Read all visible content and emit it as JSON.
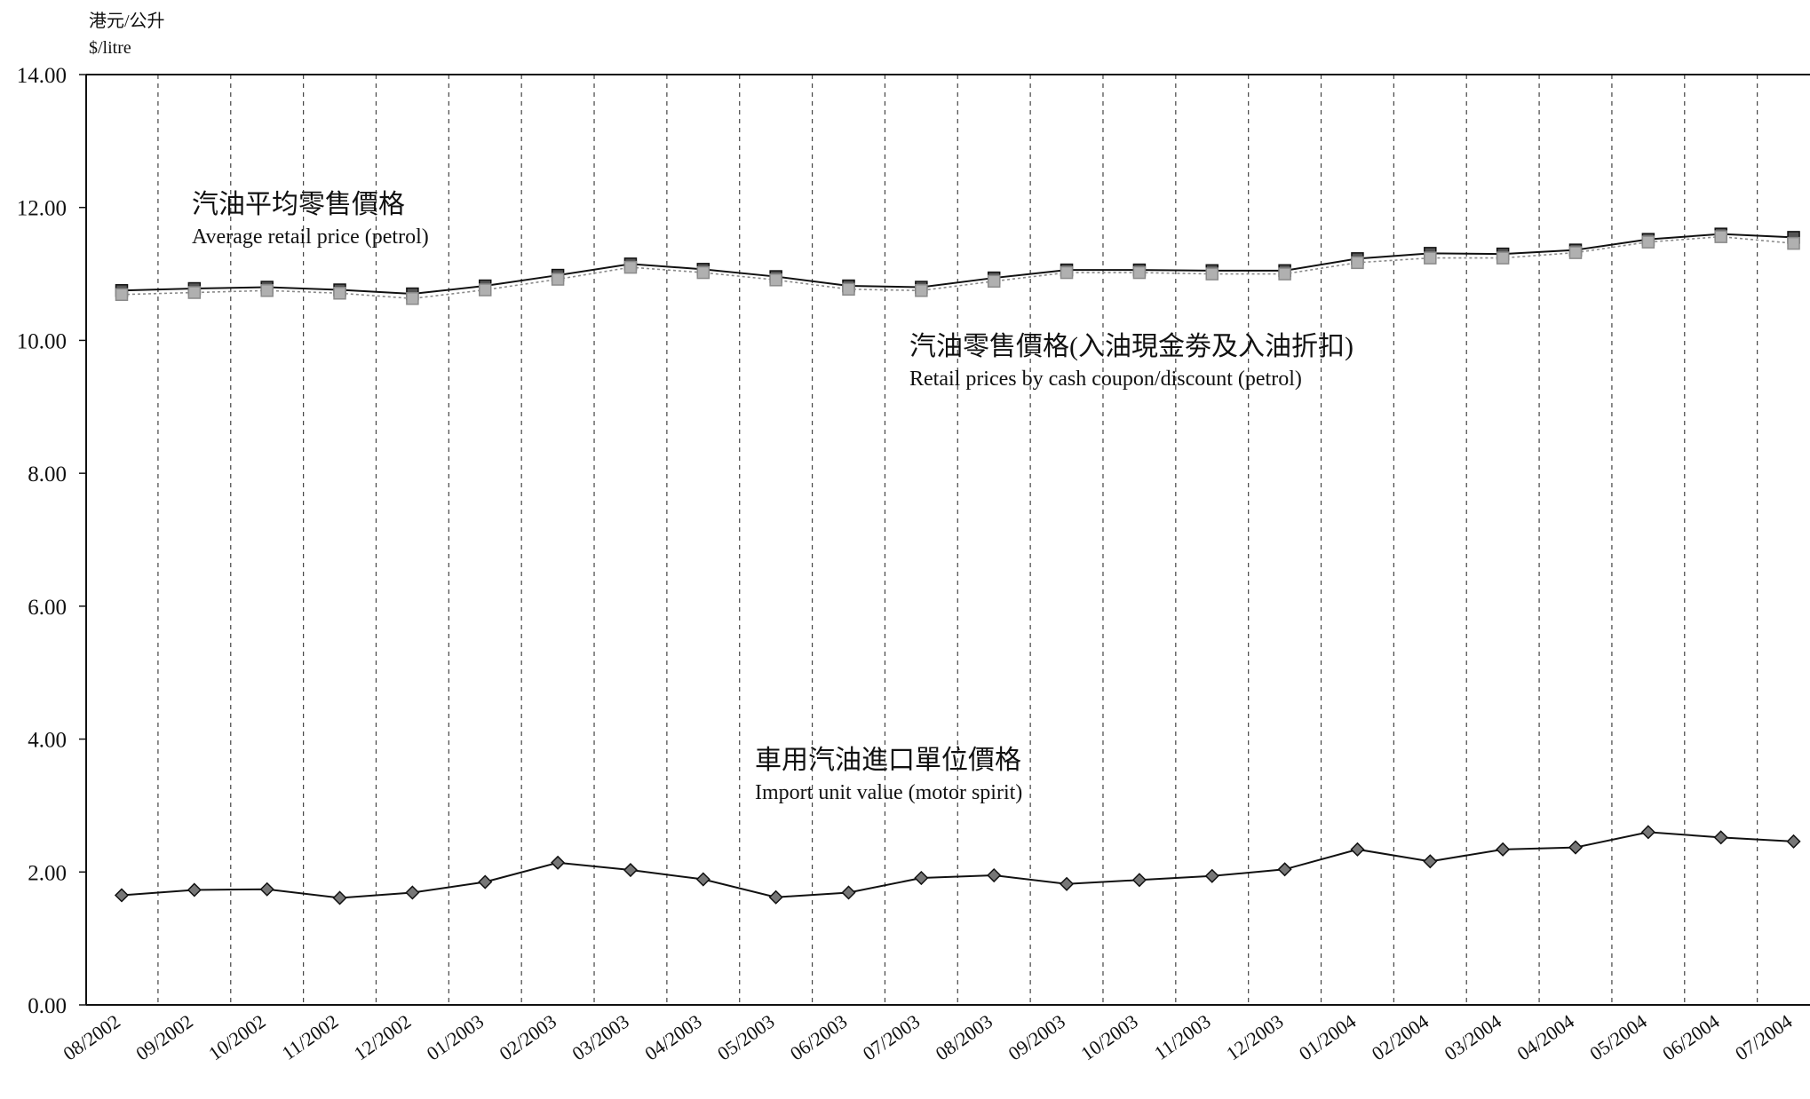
{
  "chart_data": {
    "type": "line",
    "unit_label_cn": "港元/公升",
    "unit_label_en": "$/litre",
    "ylim": [
      0,
      14
    ],
    "y_ticks": [
      "0.00",
      "2.00",
      "4.00",
      "6.00",
      "8.00",
      "10.00",
      "12.00",
      "14.00"
    ],
    "categories": [
      "08/2002",
      "09/2002",
      "10/2002",
      "11/2002",
      "12/2002",
      "01/2003",
      "02/2003",
      "03/2003",
      "04/2003",
      "05/2003",
      "06/2003",
      "07/2003",
      "08/2003",
      "09/2003",
      "10/2003",
      "11/2003",
      "12/2003",
      "01/2004",
      "02/2004",
      "03/2004",
      "04/2004",
      "05/2004",
      "06/2004",
      "07/2004"
    ],
    "grid": "vertical dashed lines between categories",
    "series": [
      {
        "key": "average",
        "label_cn": "汽油平均零售價格",
        "label_en": "Average retail price (petrol)",
        "color": "#111111",
        "marker": "square",
        "values": [
          10.75,
          10.78,
          10.8,
          10.76,
          10.7,
          10.82,
          10.98,
          11.15,
          11.07,
          10.96,
          10.82,
          10.8,
          10.94,
          11.06,
          11.06,
          11.05,
          11.05,
          11.23,
          11.31,
          11.3,
          11.36,
          11.52,
          11.6,
          11.55
        ]
      },
      {
        "key": "discount",
        "label_cn": "汽油零售價格(入油現金劵及入油折扣)",
        "label_en": "Retail prices by cash coupon/discount (petrol)",
        "color": "#8a8a8a",
        "marker": "square",
        "values": [
          10.69,
          10.72,
          10.75,
          10.71,
          10.63,
          10.76,
          10.92,
          11.1,
          11.02,
          10.91,
          10.77,
          10.75,
          10.89,
          11.02,
          11.02,
          11.0,
          11.0,
          11.17,
          11.24,
          11.24,
          11.32,
          11.48,
          11.56,
          11.46
        ]
      },
      {
        "key": "import",
        "label_cn": "車用汽油進口單位價格",
        "label_en": "Import unit value (motor spirit)",
        "color": "#111111",
        "marker": "diamond",
        "values": [
          1.65,
          1.73,
          1.74,
          1.61,
          1.69,
          1.85,
          2.14,
          2.03,
          1.89,
          1.62,
          1.69,
          1.91,
          1.95,
          1.82,
          1.88,
          1.94,
          2.04,
          2.34,
          2.16,
          2.34,
          2.37,
          2.6,
          2.52,
          2.46
        ]
      }
    ]
  }
}
